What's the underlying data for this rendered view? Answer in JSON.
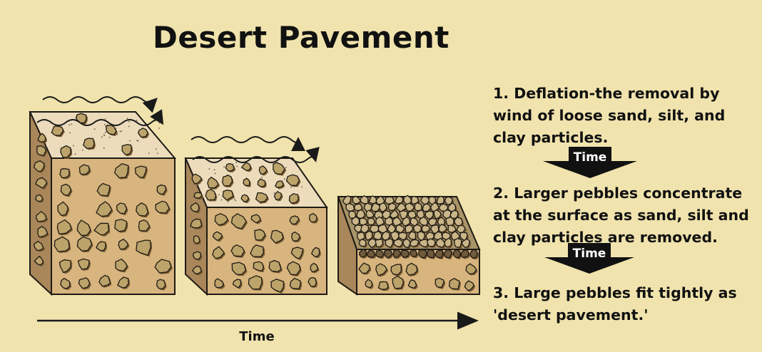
{
  "title": "Desert Pavement",
  "colors": {
    "background": "#f0e3ad",
    "sediment_front": "#d8b47e",
    "sediment_top": "#ecdcbc",
    "pebble": "#bca36a",
    "pebble_shadow": "#7a5b32",
    "outline": "#1e1a14"
  },
  "steps": [
    {
      "text": "1. Deflation-the removal by\nwind of loose sand, silt, and\nclay particles."
    },
    {
      "text": "2. Larger pebbles concentrate\nat the surface as sand, silt and\nclay particles are removed."
    },
    {
      "text": "3. Large pebbles fit tightly as\n'desert pavement.'"
    }
  ],
  "arrows": [
    {
      "label": "Time"
    },
    {
      "label": "Time"
    }
  ],
  "time_axis": {
    "label": "Time"
  },
  "blocks": [
    {
      "stage": 1,
      "icon": "sediment-block-icon"
    },
    {
      "stage": 2,
      "icon": "sediment-block-icon"
    },
    {
      "stage": 3,
      "icon": "pavement-block-icon"
    }
  ]
}
